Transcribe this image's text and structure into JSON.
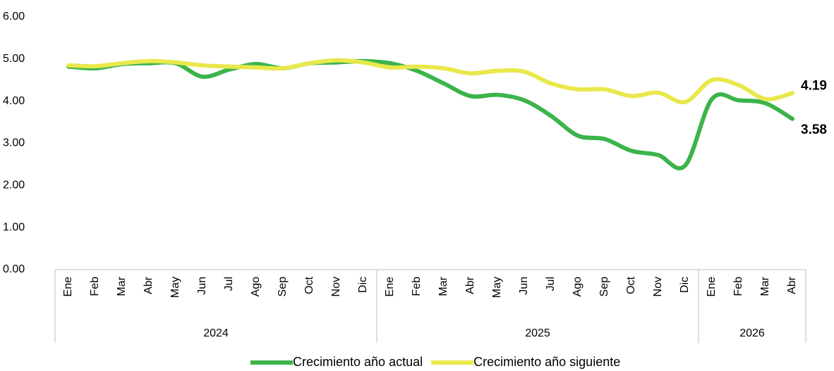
{
  "chart_data": {
    "type": "line",
    "categories": [
      "Ene",
      "Feb",
      "Mar",
      "Abr",
      "May",
      "Jun",
      "Jul",
      "Ago",
      "Sep",
      "Oct",
      "Nov",
      "Dic",
      "Ene",
      "Feb",
      "Mar",
      "Abr",
      "May",
      "Jun",
      "Jul",
      "Ago",
      "Sep",
      "Oct",
      "Nov",
      "Dic",
      "Ene",
      "Feb",
      "Mar",
      "Abr"
    ],
    "category_groups": [
      {
        "label": "2024",
        "count": 12
      },
      {
        "label": "2025",
        "count": 12
      },
      {
        "label": "2026",
        "count": 4
      }
    ],
    "series": [
      {
        "name": "Crecimiento año actual",
        "color": "#3cb44b",
        "values": [
          4.82,
          4.78,
          4.88,
          4.9,
          4.9,
          4.58,
          4.75,
          4.88,
          4.78,
          4.9,
          4.92,
          4.95,
          4.9,
          4.72,
          4.42,
          4.12,
          4.15,
          4.02,
          3.65,
          3.18,
          3.1,
          2.82,
          2.72,
          2.47,
          4.05,
          4.02,
          3.95,
          3.58
        ]
      },
      {
        "name": "Crecimiento año siguiente",
        "color": "#e9e84c",
        "values": [
          4.85,
          4.83,
          4.9,
          4.95,
          4.92,
          4.85,
          4.82,
          4.8,
          4.78,
          4.9,
          4.97,
          4.92,
          4.8,
          4.82,
          4.78,
          4.66,
          4.72,
          4.7,
          4.42,
          4.28,
          4.28,
          4.12,
          4.2,
          3.98,
          4.5,
          4.38,
          4.05,
          4.19
        ]
      }
    ],
    "ylim": [
      0,
      6
    ],
    "yticks": [
      {
        "value": 0,
        "label": "0.00"
      },
      {
        "value": 1,
        "label": "1.00"
      },
      {
        "value": 2,
        "label": "2.00"
      },
      {
        "value": 3,
        "label": "3.00"
      },
      {
        "value": 4,
        "label": "4.00"
      },
      {
        "value": 5,
        "label": "5.00"
      },
      {
        "value": 6,
        "label": "6.00"
      }
    ],
    "label_last_point": true,
    "smooth": true,
    "grid": false,
    "legend": "bottom"
  }
}
